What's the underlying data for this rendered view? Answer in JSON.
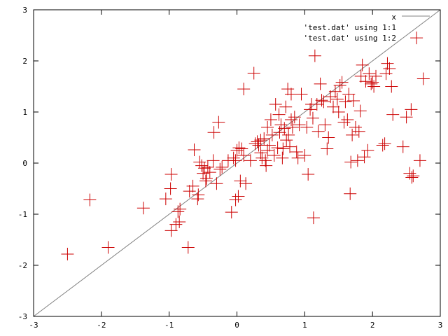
{
  "chart_data": {
    "type": "scatter",
    "title": "",
    "xlabel": "",
    "ylabel": "",
    "xlim": [
      -3,
      3
    ],
    "ylim": [
      -3,
      3
    ],
    "x_ticks": [
      "-3",
      "-2",
      "-1",
      "0",
      "1",
      "2",
      "3"
    ],
    "y_ticks": [
      "-3",
      "-2",
      "-1",
      "0",
      "1",
      "2",
      "3"
    ],
    "grid": false,
    "legend_position": "top-right",
    "series": [
      {
        "name": "x",
        "kind": "line",
        "color": "#808080",
        "points": [
          [
            -3,
            -3
          ],
          [
            3,
            3
          ]
        ]
      },
      {
        "name": "'test.dat' using 1:1",
        "kind": "points",
        "color": "#ff0000",
        "points": []
      },
      {
        "name": "'test.dat' using 1:2",
        "kind": "points",
        "marker": "plus",
        "color": "#cc0000",
        "points": [
          [
            -2.5,
            -1.78
          ],
          [
            -2.17,
            -0.72
          ],
          [
            -1.9,
            -1.65
          ],
          [
            -1.38,
            -0.88
          ],
          [
            -1.05,
            -0.7
          ],
          [
            -0.98,
            -0.5
          ],
          [
            -0.97,
            -0.22
          ],
          [
            -0.97,
            -1.32
          ],
          [
            -0.9,
            -1.2
          ],
          [
            -0.87,
            -0.95
          ],
          [
            -0.85,
            -1.15
          ],
          [
            -0.84,
            -0.9
          ],
          [
            -0.72,
            -1.65
          ],
          [
            -0.7,
            -0.55
          ],
          [
            -0.65,
            -0.45
          ],
          [
            -0.63,
            0.26
          ],
          [
            -0.58,
            -0.7
          ],
          [
            -0.57,
            -0.62
          ],
          [
            -0.55,
            0.02
          ],
          [
            -0.52,
            -0.05
          ],
          [
            -0.5,
            -0.2
          ],
          [
            -0.48,
            -0.1
          ],
          [
            -0.46,
            -0.35
          ],
          [
            -0.45,
            -0.3
          ],
          [
            -0.43,
            -0.08
          ],
          [
            -0.4,
            -0.18
          ],
          [
            -0.35,
            0.05
          ],
          [
            -0.3,
            -0.4
          ],
          [
            -0.34,
            0.6
          ],
          [
            -0.27,
            0.8
          ],
          [
            -0.25,
            -0.12
          ],
          [
            -0.22,
            -0.08
          ],
          [
            -0.13,
            0.05
          ],
          [
            -0.08,
            -0.96
          ],
          [
            -0.05,
            0.1
          ],
          [
            -0.02,
            0.05
          ],
          [
            0.0,
            0.25
          ],
          [
            -0.02,
            -0.72
          ],
          [
            0.02,
            -0.65
          ],
          [
            0.03,
            0.3
          ],
          [
            0.05,
            -0.35
          ],
          [
            0.07,
            0.28
          ],
          [
            0.1,
            0.15
          ],
          [
            0.1,
            1.45
          ],
          [
            0.13,
            -0.4
          ],
          [
            0.2,
            0.05
          ],
          [
            0.25,
            1.76
          ],
          [
            0.27,
            0.38
          ],
          [
            0.3,
            0.42
          ],
          [
            0.32,
            0.35
          ],
          [
            0.35,
            0.45
          ],
          [
            0.35,
            0.2
          ],
          [
            0.37,
            0.1
          ],
          [
            0.4,
            0.48
          ],
          [
            0.42,
            0.05
          ],
          [
            0.43,
            -0.05
          ],
          [
            0.45,
            0.25
          ],
          [
            0.45,
            0.7
          ],
          [
            0.48,
            0.35
          ],
          [
            0.5,
            0.85
          ],
          [
            0.52,
            0.55
          ],
          [
            0.55,
            0.15
          ],
          [
            0.57,
            1.15
          ],
          [
            0.6,
            0.3
          ],
          [
            0.62,
            0.95
          ],
          [
            0.63,
            0.6
          ],
          [
            0.65,
            0.75
          ],
          [
            0.67,
            0.1
          ],
          [
            0.68,
            0.28
          ],
          [
            0.7,
            0.68
          ],
          [
            0.72,
            1.1
          ],
          [
            0.73,
            0.45
          ],
          [
            0.75,
            1.45
          ],
          [
            0.76,
            0.55
          ],
          [
            0.78,
            0.32
          ],
          [
            0.8,
            1.35
          ],
          [
            0.8,
            0.85
          ],
          [
            0.82,
            0.7
          ],
          [
            0.85,
            0.9
          ],
          [
            0.88,
            0.22
          ],
          [
            0.9,
            0.1
          ],
          [
            0.92,
            0.75
          ],
          [
            0.95,
            1.35
          ],
          [
            1.0,
            0.15
          ],
          [
            1.03,
            0.7
          ],
          [
            1.05,
            -0.22
          ],
          [
            1.08,
            1.05
          ],
          [
            1.1,
            1.15
          ],
          [
            1.12,
            0.88
          ],
          [
            1.13,
            -1.07
          ],
          [
            1.15,
            2.1
          ],
          [
            1.18,
            1.15
          ],
          [
            1.2,
            0.62
          ],
          [
            1.23,
            1.55
          ],
          [
            1.25,
            1.23
          ],
          [
            1.28,
            1.2
          ],
          [
            1.3,
            0.75
          ],
          [
            1.33,
            0.28
          ],
          [
            1.35,
            0.5
          ],
          [
            1.38,
            1.3
          ],
          [
            1.42,
            1.1
          ],
          [
            1.45,
            1.4
          ],
          [
            1.48,
            1.25
          ],
          [
            1.5,
            1.0
          ],
          [
            1.52,
            1.52
          ],
          [
            1.55,
            1.58
          ],
          [
            1.58,
            0.8
          ],
          [
            1.6,
            1.2
          ],
          [
            1.63,
            0.85
          ],
          [
            1.65,
            1.35
          ],
          [
            1.67,
            -0.6
          ],
          [
            1.68,
            0.02
          ],
          [
            1.7,
            0.55
          ],
          [
            1.72,
            1.22
          ],
          [
            1.75,
            0.7
          ],
          [
            1.78,
            0.05
          ],
          [
            1.8,
            0.62
          ],
          [
            1.82,
            1.02
          ],
          [
            1.83,
            1.7
          ],
          [
            1.85,
            1.92
          ],
          [
            1.88,
            0.12
          ],
          [
            1.9,
            1.6
          ],
          [
            1.93,
            0.25
          ],
          [
            1.95,
            1.75
          ],
          [
            1.98,
            1.55
          ],
          [
            2.0,
            1.58
          ],
          [
            2.02,
            1.5
          ],
          [
            2.05,
            1.7
          ],
          [
            2.15,
            0.35
          ],
          [
            2.18,
            0.38
          ],
          [
            2.2,
            1.75
          ],
          [
            2.22,
            1.95
          ],
          [
            2.25,
            1.85
          ],
          [
            2.28,
            1.5
          ],
          [
            2.3,
            0.95
          ],
          [
            2.45,
            0.32
          ],
          [
            2.5,
            0.9
          ],
          [
            2.55,
            -0.2
          ],
          [
            2.57,
            1.05
          ],
          [
            2.58,
            -0.28
          ],
          [
            2.6,
            -0.25
          ],
          [
            2.65,
            2.45
          ],
          [
            2.7,
            0.05
          ],
          [
            2.75,
            1.65
          ]
        ]
      }
    ]
  }
}
